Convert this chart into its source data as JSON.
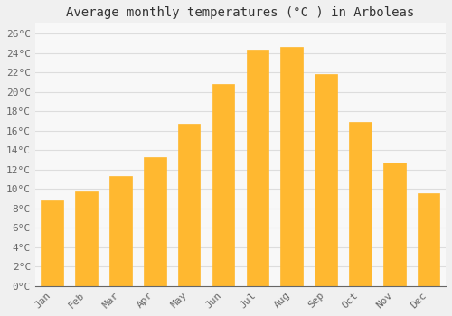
{
  "title": "Average monthly temperatures (°C ) in Arboleas",
  "months": [
    "Jan",
    "Feb",
    "Mar",
    "Apr",
    "May",
    "Jun",
    "Jul",
    "Aug",
    "Sep",
    "Oct",
    "Nov",
    "Dec"
  ],
  "temperatures": [
    8.8,
    9.7,
    11.3,
    13.3,
    16.7,
    20.8,
    24.3,
    24.6,
    21.8,
    16.9,
    12.7,
    9.6
  ],
  "bar_color": "#FFA500",
  "bar_edge_color": "#E08800",
  "background_color": "#F0F0F0",
  "plot_bg_color": "#F8F8F8",
  "grid_color": "#DDDDDD",
  "text_color": "#666666",
  "ylim": [
    0,
    27
  ],
  "ytick_step": 2,
  "title_fontsize": 10,
  "tick_fontsize": 8,
  "bar_width": 0.65
}
